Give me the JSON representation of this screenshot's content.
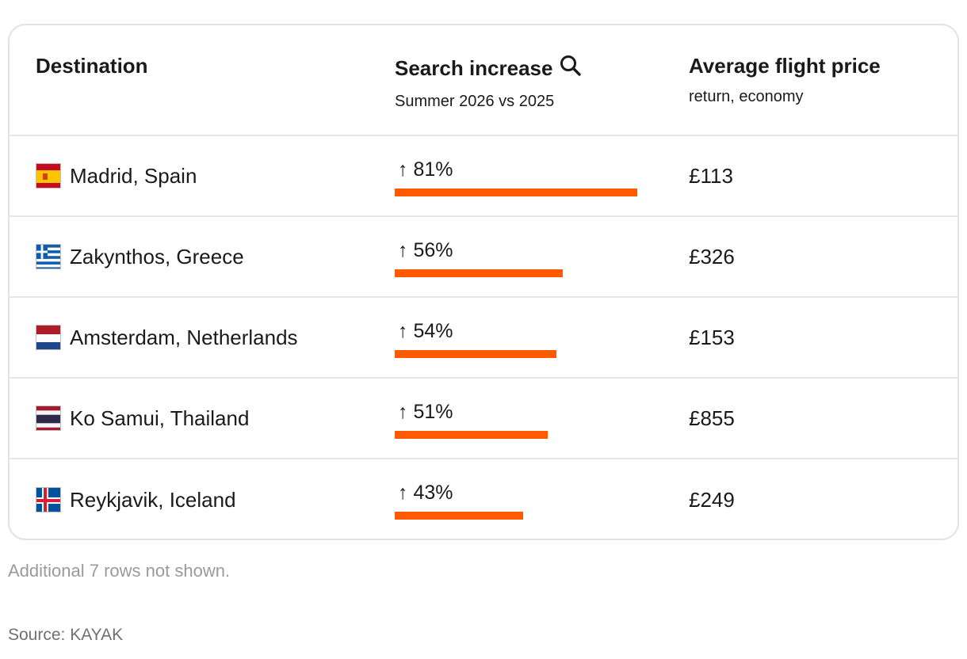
{
  "chart_data": {
    "type": "table",
    "columns": [
      {
        "title": "Destination",
        "subtitle": ""
      },
      {
        "title": "Search increase",
        "subtitle": "Summer 2026 vs 2025",
        "icon": "search-icon"
      },
      {
        "title": "Average flight price",
        "subtitle": "return, economy"
      }
    ],
    "rows": [
      {
        "destination": "Madrid, Spain",
        "flag": "spain-flag-icon",
        "increase": 81,
        "increase_label": "↑ 81%",
        "price": "£113"
      },
      {
        "destination": "Zakynthos, Greece",
        "flag": "greece-flag-icon",
        "increase": 56,
        "increase_label": "↑ 56%",
        "price": "£326"
      },
      {
        "destination": "Amsterdam, Netherlands",
        "flag": "netherlands-flag-icon",
        "increase": 54,
        "increase_label": "↑ 54%",
        "price": "£153"
      },
      {
        "destination": "Ko Samui, Thailand",
        "flag": "thailand-flag-icon",
        "increase": 51,
        "increase_label": "↑ 51%",
        "price": "£855"
      },
      {
        "destination": "Reykjavik, Iceland",
        "flag": "iceland-flag-icon",
        "increase": 43,
        "increase_label": "↑ 43%",
        "price": "£249"
      }
    ],
    "bar_max": 81,
    "bar_color": "#ff5a00"
  },
  "footer": {
    "note": "Additional 7 rows not shown.",
    "source": "Source: KAYAK"
  }
}
